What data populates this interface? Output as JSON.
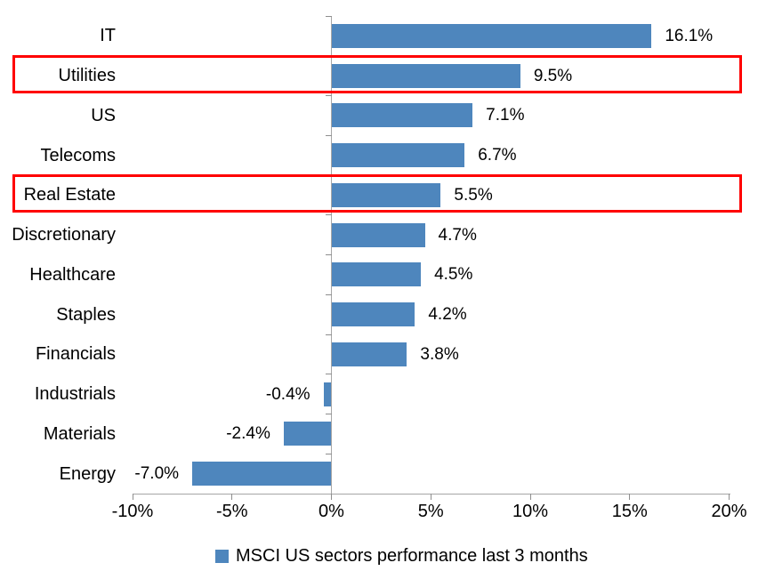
{
  "chart_data": {
    "type": "bar",
    "orientation": "horizontal",
    "title": "",
    "xlabel": "",
    "ylabel": "",
    "categories": [
      "IT",
      "Utilities",
      "US",
      "Telecoms",
      "Real Estate",
      "Discretionary",
      "Healthcare",
      "Staples",
      "Financials",
      "Industrials",
      "Materials",
      "Energy"
    ],
    "values": [
      16.1,
      9.5,
      7.1,
      6.7,
      5.5,
      4.7,
      4.5,
      4.2,
      3.8,
      -0.4,
      -2.4,
      -7.0
    ],
    "data_labels": [
      "16.1%",
      "9.5%",
      "7.1%",
      "6.7%",
      "5.5%",
      "4.7%",
      "4.5%",
      "4.2%",
      "3.8%",
      "-0.4%",
      "-2.4%",
      "-7.0%"
    ],
    "highlighted_categories": [
      "Utilities",
      "Real Estate"
    ],
    "xlim": [
      -10,
      20
    ],
    "x_ticks": [
      {
        "value": -10,
        "label": "-10%"
      },
      {
        "value": -5,
        "label": "-5%"
      },
      {
        "value": 0,
        "label": "0%"
      },
      {
        "value": 5,
        "label": "5%"
      },
      {
        "value": 10,
        "label": "10%"
      },
      {
        "value": 15,
        "label": "15%"
      },
      {
        "value": 20,
        "label": "20%"
      }
    ],
    "grid": false,
    "legend_position": "bottom",
    "legend_entries": [
      "MSCI US sectors performance last 3 months"
    ]
  },
  "legend": {
    "label": "MSCI US sectors performance last 3 months"
  },
  "colors": {
    "bar_fill": "#4e86bd",
    "legend_marker": "#4e86bd",
    "highlight_border": "#ff0000",
    "axis_line": "#a6a6a6",
    "tick_mark": "#8e8e8e",
    "text": "#000000"
  }
}
